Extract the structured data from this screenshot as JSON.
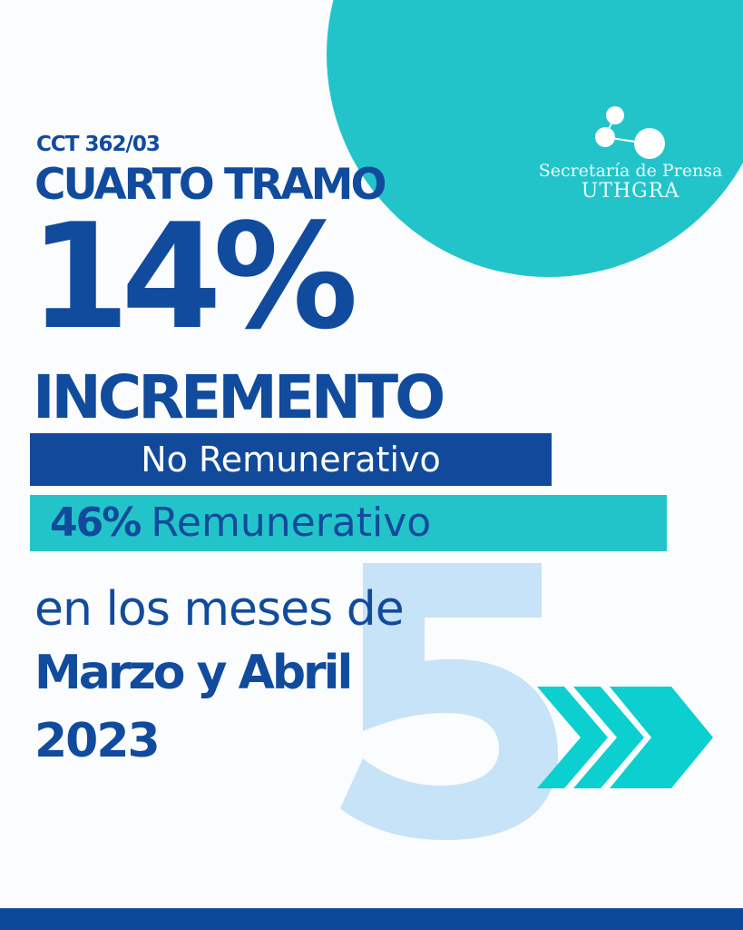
{
  "brand": {
    "line1": "Secretaría de Prensa",
    "line2": "UTHGRA"
  },
  "header": {
    "agreement": "CCT 362/03",
    "stage": "CUARTO TRAMO"
  },
  "main": {
    "percentage": "14%",
    "increase_label": "INCREMENTO",
    "non_remunerative_label": "No Remunerativo",
    "remunerative_percent": "46%",
    "remunerative_label": "Remunerativo",
    "months_intro": "en los meses de",
    "months": "Marzo y Abril",
    "year": "2023"
  },
  "decor": {
    "big_number": "5"
  },
  "colors": {
    "dark_blue": "#114b9d",
    "cyan": "#22c4ca",
    "light_blue": "#c6e3f8",
    "chevron": "#0ccfcf"
  }
}
